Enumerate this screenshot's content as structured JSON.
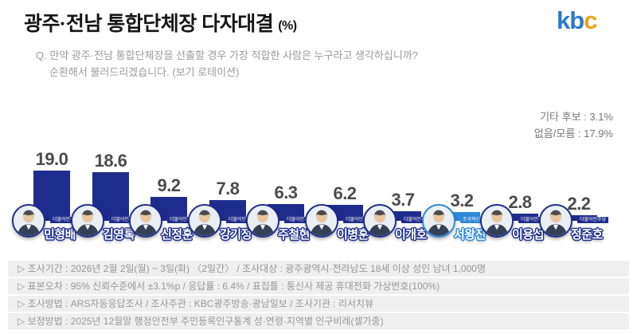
{
  "header": {
    "title": "광주·전남 통합단체장 다자대결",
    "unit": "(%)",
    "logo_text": "kbc",
    "question_line1": "Q. 만약 광주·전남 통합단체장을 선출할 경우 가장 적합한 사람은 누구라고 생각하십니까?",
    "question_line2": "순환해서 불러드리겠습니다. (보기 로테이션)"
  },
  "notes": {
    "others": "기타 후보 : 3.1%",
    "none_dont_know": "없음/모름 : 17.9%"
  },
  "chart_data": {
    "type": "bar",
    "title": "광주·전남 통합단체장 다자대결 (%)",
    "categories": [
      "민형배",
      "김영록",
      "신정훈",
      "강기정",
      "주철현",
      "이병훈",
      "이개호",
      "서왕진",
      "이용섭",
      "정준호"
    ],
    "values": [
      19.0,
      18.6,
      9.2,
      7.8,
      6.3,
      6.2,
      3.7,
      3.2,
      2.8,
      2.2
    ],
    "unit": "%",
    "ylim": [
      0,
      20
    ],
    "grid": false,
    "legend": "none",
    "annotations": [
      "기타 후보 : 3.1%",
      "없음/모름 : 17.9%"
    ]
  },
  "candidates": [
    {
      "name": "민형배",
      "value": 19.0,
      "value_label": "19.0",
      "party": "더불어민주당",
      "color": "#1e2d8d"
    },
    {
      "name": "김영록",
      "value": 18.6,
      "value_label": "18.6",
      "party": "더불어민주당",
      "color": "#1e2d8d"
    },
    {
      "name": "신정훈",
      "value": 9.2,
      "value_label": "9.2",
      "party": "더불어민주당",
      "color": "#1e2d8d"
    },
    {
      "name": "강기정",
      "value": 7.8,
      "value_label": "7.8",
      "party": "더불어민주당",
      "color": "#1e2d8d"
    },
    {
      "name": "주철현",
      "value": 6.3,
      "value_label": "6.3",
      "party": "더불어민주당",
      "color": "#1e2d8d"
    },
    {
      "name": "이병훈",
      "value": 6.2,
      "value_label": "6.2",
      "party": "더불어민주당",
      "color": "#1e2d8d"
    },
    {
      "name": "이개호",
      "value": 3.7,
      "value_label": "3.7",
      "party": "더불어민주당",
      "color": "#1e2d8d"
    },
    {
      "name": "서왕진",
      "value": 3.2,
      "value_label": "3.2",
      "party": "조국혁신당",
      "color": "#2e8ad8"
    },
    {
      "name": "이용섭",
      "value": 2.8,
      "value_label": "2.8",
      "party": "더불어민주당",
      "color": "#1e2d8d"
    },
    {
      "name": "정준호",
      "value": 2.2,
      "value_label": "2.2",
      "party": "더불어민주당",
      "color": "#1e2d8d"
    }
  ],
  "footer": {
    "lines": [
      "▷ 조사기간 : 2026년 2월 2일(월) ~ 3일(화) 〈2일간〉 / 조사대상 : 광주광역시·전라남도 18세 이상 성인 남녀 1,000명",
      "▷ 표본오차 : 95% 신뢰수준에서 ±3.1%p / 응답률 : 6.4% / 표집틀 : 통신사 제공 휴대전화 가상번호(100%)",
      "▷ 조사방법 : ARS자동응답조사 / 조사주관 : KBC광주방송·광남일보 / 조사기관 : 리서치뷰",
      "▷ 보정방법 : 2025년 12월말 행정안전부 주민등록인구통계 성·연령·지역별 인구비례(셀가중)"
    ]
  },
  "colors": {
    "bar_navy": "#1e2d8d",
    "bar_lightblue": "#2e8ad8",
    "value_text": "#4b4b4b",
    "logo_blue": "#2a7cc8",
    "logo_orange": "#f4a01c",
    "footer_bg": "#efefef"
  }
}
